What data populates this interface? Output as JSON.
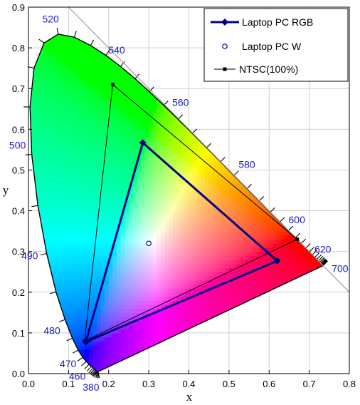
{
  "chart_data": {
    "type": "scatter",
    "title": "",
    "xlabel": "x",
    "ylabel": "y",
    "xlim": [
      0.0,
      0.8
    ],
    "ylim": [
      0.0,
      0.9
    ],
    "x_ticks": [
      "0.0",
      "0.1",
      "0.2",
      "0.3",
      "0.4",
      "0.5",
      "0.6",
      "0.7",
      "0.8"
    ],
    "y_ticks": [
      "0.0",
      "0.1",
      "0.2",
      "0.3",
      "0.4",
      "0.5",
      "0.6",
      "0.7",
      "0.8",
      "0.9"
    ],
    "grid": true,
    "legend_position": "top-right",
    "spectral_locus": [
      [
        0.1741,
        0.005
      ],
      [
        0.1738,
        0.0049
      ],
      [
        0.1736,
        0.0049
      ],
      [
        0.1733,
        0.0048
      ],
      [
        0.173,
        0.0048
      ],
      [
        0.1726,
        0.0048
      ],
      [
        0.1721,
        0.0048
      ],
      [
        0.1714,
        0.0051
      ],
      [
        0.1703,
        0.0058
      ],
      [
        0.1689,
        0.0069
      ],
      [
        0.1669,
        0.0086
      ],
      [
        0.1644,
        0.0109
      ],
      [
        0.1611,
        0.0138
      ],
      [
        0.1566,
        0.0177
      ],
      [
        0.151,
        0.0227
      ],
      [
        0.144,
        0.0297
      ],
      [
        0.1355,
        0.0399
      ],
      [
        0.1241,
        0.0578
      ],
      [
        0.1096,
        0.0868
      ],
      [
        0.0913,
        0.1327
      ],
      [
        0.0687,
        0.2007
      ],
      [
        0.0454,
        0.295
      ],
      [
        0.0235,
        0.4127
      ],
      [
        0.0082,
        0.5384
      ],
      [
        0.0039,
        0.6548
      ],
      [
        0.0139,
        0.7502
      ],
      [
        0.0389,
        0.812
      ],
      [
        0.0743,
        0.8338
      ],
      [
        0.1142,
        0.8262
      ],
      [
        0.1547,
        0.8059
      ],
      [
        0.1929,
        0.7816
      ],
      [
        0.2296,
        0.7543
      ],
      [
        0.2658,
        0.7243
      ],
      [
        0.3016,
        0.6923
      ],
      [
        0.3373,
        0.6589
      ],
      [
        0.3731,
        0.6245
      ],
      [
        0.4087,
        0.5896
      ],
      [
        0.4441,
        0.5547
      ],
      [
        0.4788,
        0.5202
      ],
      [
        0.5125,
        0.4866
      ],
      [
        0.5448,
        0.4544
      ],
      [
        0.5752,
        0.4242
      ],
      [
        0.6029,
        0.3965
      ],
      [
        0.627,
        0.3725
      ],
      [
        0.6482,
        0.3514
      ],
      [
        0.6658,
        0.334
      ],
      [
        0.6801,
        0.3197
      ],
      [
        0.6915,
        0.3083
      ],
      [
        0.7006,
        0.2993
      ],
      [
        0.7079,
        0.292
      ],
      [
        0.714,
        0.2859
      ],
      [
        0.719,
        0.2809
      ],
      [
        0.723,
        0.277
      ],
      [
        0.726,
        0.274
      ],
      [
        0.7283,
        0.2717
      ],
      [
        0.73,
        0.27
      ],
      [
        0.7311,
        0.2689
      ],
      [
        0.732,
        0.268
      ],
      [
        0.7327,
        0.2673
      ],
      [
        0.7334,
        0.2666
      ],
      [
        0.734,
        0.266
      ],
      [
        0.7344,
        0.2656
      ],
      [
        0.7346,
        0.2654
      ],
      [
        0.7347,
        0.2653
      ]
    ],
    "wavelength_labels": [
      {
        "text": "380",
        "x": 0.1741,
        "y": 0.005
      },
      {
        "text": "460",
        "x": 0.144,
        "y": 0.0297
      },
      {
        "text": "470",
        "x": 0.1241,
        "y": 0.0578
      },
      {
        "text": "480",
        "x": 0.0913,
        "y": 0.1327
      },
      {
        "text": "490",
        "x": 0.0454,
        "y": 0.295
      },
      {
        "text": "500",
        "x": 0.0082,
        "y": 0.5384
      },
      {
        "text": "520",
        "x": 0.0743,
        "y": 0.8338
      },
      {
        "text": "540",
        "x": 0.2296,
        "y": 0.7543
      },
      {
        "text": "560",
        "x": 0.3731,
        "y": 0.6245
      },
      {
        "text": "580",
        "x": 0.5125,
        "y": 0.4866
      },
      {
        "text": "600",
        "x": 0.627,
        "y": 0.3725
      },
      {
        "text": "620",
        "x": 0.6915,
        "y": 0.3083
      },
      {
        "text": "700",
        "x": 0.7347,
        "y": 0.2653
      }
    ],
    "series": [
      {
        "name": "Laptop PC RGB",
        "x": [
          0.62,
          0.285,
          0.143,
          0.62
        ],
        "y": [
          0.277,
          0.567,
          0.078,
          0.277
        ],
        "color": "#000080"
      },
      {
        "name": "Laptop PC W",
        "x": [
          0.3
        ],
        "y": [
          0.32
        ],
        "color": "#000080"
      },
      {
        "name": "NTSC(100%)",
        "x": [
          0.67,
          0.21,
          0.14,
          0.67
        ],
        "y": [
          0.33,
          0.71,
          0.08,
          0.33
        ],
        "color": "#000000"
      }
    ]
  }
}
